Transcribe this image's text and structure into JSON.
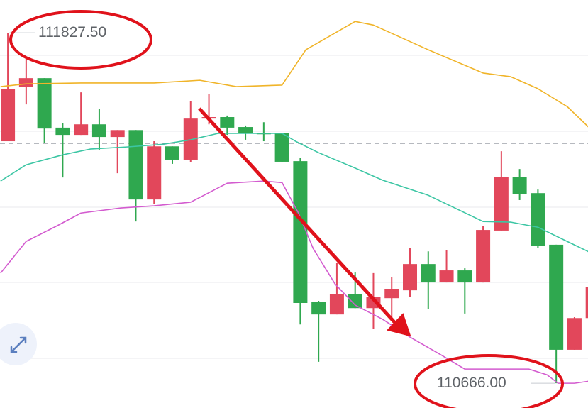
{
  "chart_data": {
    "type": "candlestick",
    "title": "",
    "xlabel": "",
    "ylabel": "",
    "ylim": [
      110584,
      111936
    ],
    "xlim": [
      0.57,
      32.74
    ],
    "grid": true,
    "colors": {
      "up": "#e2475b",
      "down": "#2fa84f",
      "upper_band": "#f0b429",
      "middle_band": "#3cc6a4",
      "lower_band": "#d35bcf",
      "annotation": "#e0121b",
      "price_line": "#8a8f99"
    },
    "current_price_line": 111461,
    "high_label": "111827.50",
    "low_label": "110666.00",
    "high_value": 111827.5,
    "low_value": 110666.0,
    "candles": [
      {
        "o": 111468,
        "h": 111827.5,
        "l": 111468,
        "c": 111642
      },
      {
        "o": 111647,
        "h": 111741,
        "l": 111590,
        "c": 111677
      },
      {
        "o": 111677,
        "h": 111677,
        "l": 111461,
        "c": 111510
      },
      {
        "o": 111513,
        "h": 111527,
        "l": 111348,
        "c": 111489
      },
      {
        "o": 111489,
        "h": 111630,
        "l": 111489,
        "c": 111524
      },
      {
        "o": 111524,
        "h": 111576,
        "l": 111440,
        "c": 111482
      },
      {
        "o": 111482,
        "h": 111505,
        "l": 111362,
        "c": 111505
      },
      {
        "o": 111505,
        "h": 111505,
        "l": 111202,
        "c": 111275
      },
      {
        "o": 111275,
        "h": 111468,
        "l": 111259,
        "c": 111451
      },
      {
        "o": 111451,
        "h": 111451,
        "l": 111393,
        "c": 111407
      },
      {
        "o": 111407,
        "h": 111600,
        "l": 111400,
        "c": 111543
      },
      {
        "o": 111543,
        "h": 111625,
        "l": 111524,
        "c": 111548
      },
      {
        "o": 111548,
        "h": 111553,
        "l": 111489,
        "c": 111513
      },
      {
        "o": 111515,
        "h": 111520,
        "l": 111473,
        "c": 111496
      },
      {
        "o": 111496,
        "h": 111531,
        "l": 111468,
        "c": 111491
      },
      {
        "o": 111494,
        "h": 111494,
        "l": 111400,
        "c": 111400
      },
      {
        "o": 111402,
        "h": 111414,
        "l": 110861,
        "c": 110932
      },
      {
        "o": 110936,
        "h": 110939,
        "l": 110737,
        "c": 110894
      },
      {
        "o": 110894,
        "h": 111066,
        "l": 110894,
        "c": 110962
      },
      {
        "o": 110962,
        "h": 111033,
        "l": 110915,
        "c": 110915
      },
      {
        "o": 110915,
        "h": 111031,
        "l": 110847,
        "c": 110951
      },
      {
        "o": 110948,
        "h": 111019,
        "l": 110885,
        "c": 110979
      },
      {
        "o": 110974,
        "h": 111113,
        "l": 110953,
        "c": 111061
      },
      {
        "o": 111061,
        "h": 111103,
        "l": 110911,
        "c": 111000
      },
      {
        "o": 111000,
        "h": 111108,
        "l": 111000,
        "c": 111040
      },
      {
        "o": 111040,
        "h": 111047,
        "l": 110897,
        "c": 111000
      },
      {
        "o": 111000,
        "h": 111186,
        "l": 111000,
        "c": 111174
      },
      {
        "o": 111172,
        "h": 111435,
        "l": 111172,
        "c": 111350
      },
      {
        "o": 111350,
        "h": 111376,
        "l": 111273,
        "c": 111292
      },
      {
        "o": 111296,
        "h": 111308,
        "l": 111113,
        "c": 111122
      },
      {
        "o": 111125,
        "h": 111125,
        "l": 110666,
        "c": 110777
      },
      {
        "o": 110777,
        "h": 110885,
        "l": 110777,
        "c": 110882
      },
      {
        "o": 110882,
        "h": 110984,
        "l": 110882,
        "c": 110984
      }
    ],
    "bands": {
      "upper": [
        [
          0.6,
          111649
        ],
        [
          2,
          111658
        ],
        [
          5,
          111661
        ],
        [
          9,
          111661
        ],
        [
          11.5,
          111670
        ],
        [
          13.5,
          111649
        ],
        [
          16,
          111654
        ],
        [
          17.3,
          111771
        ],
        [
          20,
          111865
        ],
        [
          21,
          111853
        ],
        [
          24,
          111771
        ],
        [
          27,
          111694
        ],
        [
          28.5,
          111682
        ],
        [
          30,
          111642
        ],
        [
          31.6,
          111583
        ],
        [
          32.8,
          111513
        ]
      ],
      "middle": [
        [
          0.6,
          111336
        ],
        [
          2,
          111390
        ],
        [
          4,
          111423
        ],
        [
          5.5,
          111442
        ],
        [
          7.5,
          111449
        ],
        [
          9.5,
          111458
        ],
        [
          11,
          111473
        ],
        [
          12.5,
          111494
        ],
        [
          14,
          111494
        ],
        [
          16,
          111494
        ],
        [
          16.8,
          111466
        ],
        [
          18,
          111430
        ],
        [
          20,
          111379
        ],
        [
          21.5,
          111339
        ],
        [
          24,
          111289
        ],
        [
          27,
          111202
        ],
        [
          28.5,
          111200
        ],
        [
          30,
          111183
        ],
        [
          31.6,
          111136
        ],
        [
          32.8,
          111101
        ]
      ],
      "lower": [
        [
          0.6,
          111031
        ],
        [
          2,
          111136
        ],
        [
          3.7,
          111188
        ],
        [
          5,
          111230
        ],
        [
          7.2,
          111247
        ],
        [
          9,
          111254
        ],
        [
          11,
          111266
        ],
        [
          13,
          111329
        ],
        [
          15,
          111336
        ],
        [
          16,
          111331
        ],
        [
          16.9,
          111230
        ],
        [
          17.7,
          111113
        ],
        [
          18.9,
          110995
        ],
        [
          20,
          110925
        ],
        [
          21.5,
          110878
        ],
        [
          23,
          110819
        ],
        [
          24.7,
          110760
        ],
        [
          26,
          110713
        ],
        [
          27.8,
          110713
        ],
        [
          29.5,
          110713
        ],
        [
          30.5,
          110694
        ],
        [
          31.1,
          110666
        ],
        [
          32,
          110666
        ],
        [
          32.8,
          110673
        ]
      ]
    }
  },
  "controls": {
    "expand_icon": "expand-arrows-icon"
  }
}
